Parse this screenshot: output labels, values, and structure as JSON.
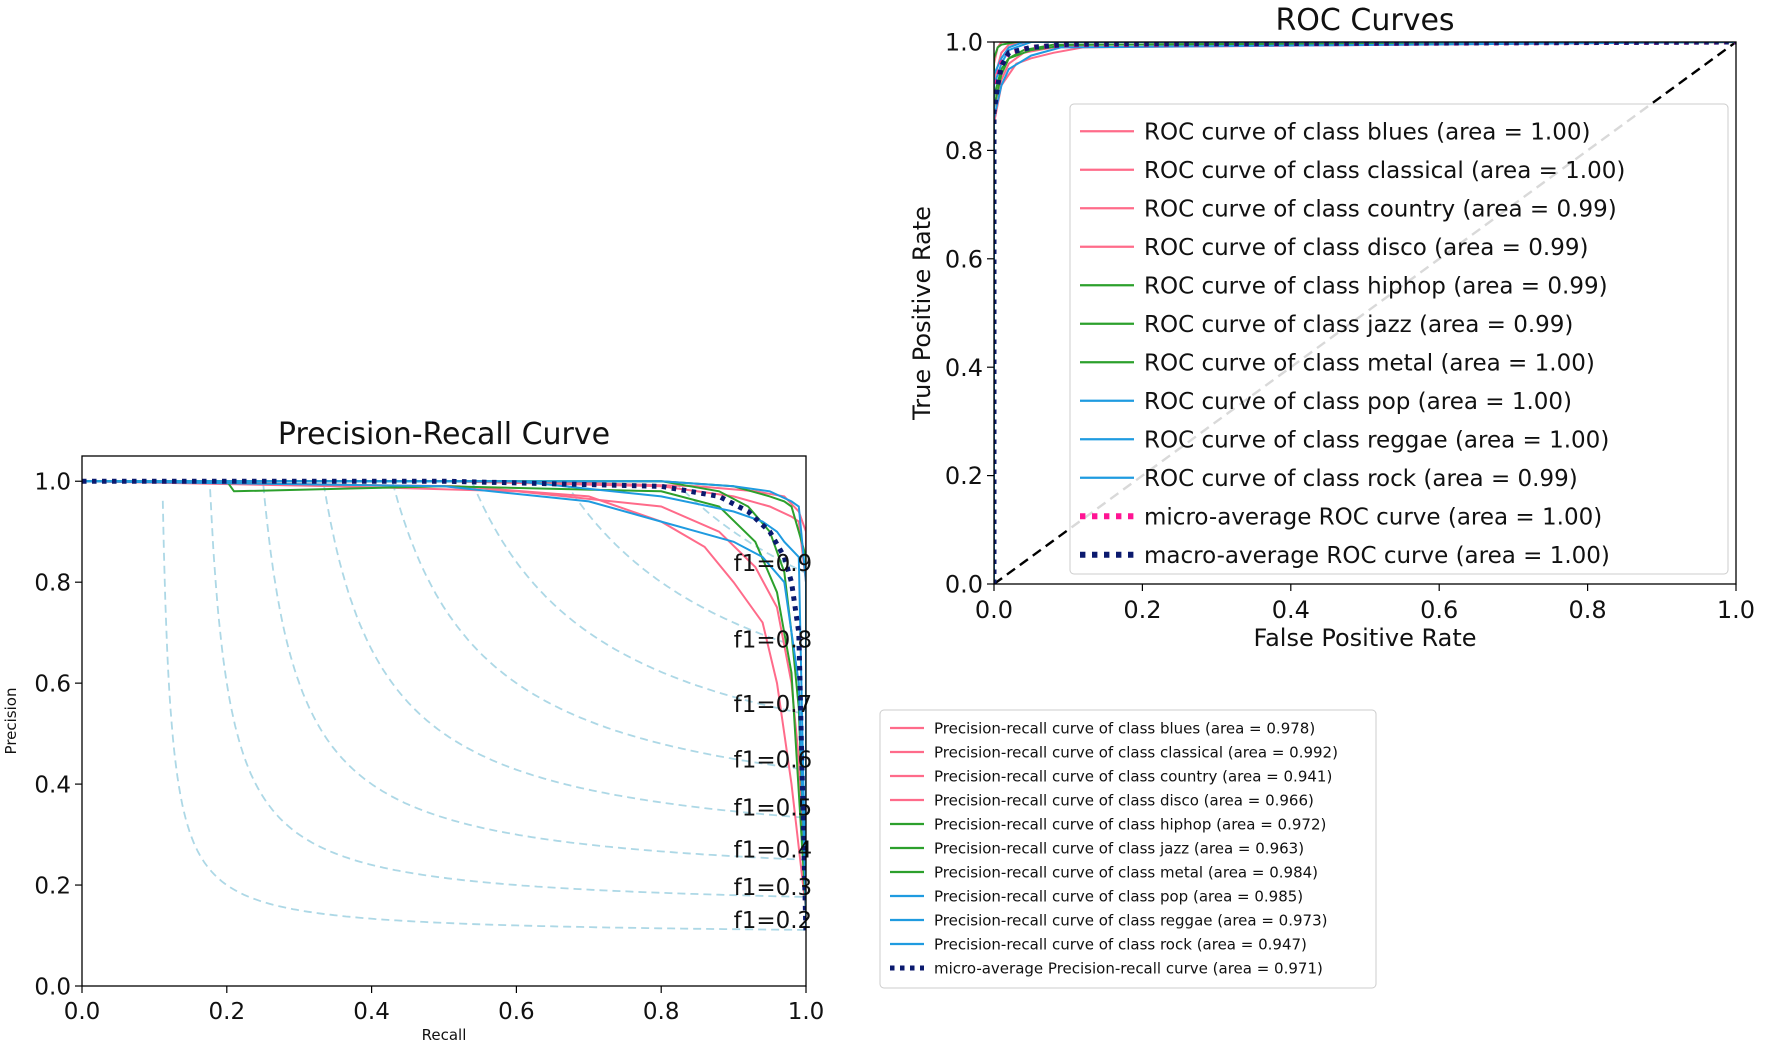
{
  "chart_data": [
    {
      "type": "line",
      "title": "ROC Curves",
      "xlabel": "False Positive Rate",
      "ylabel": "True Positive Rate",
      "xlim": [
        0.0,
        1.0
      ],
      "ylim": [
        0.0,
        1.0
      ],
      "xticks": [
        "0.0",
        "0.2",
        "0.4",
        "0.6",
        "0.8",
        "1.0"
      ],
      "yticks": [
        "0.0",
        "0.2",
        "0.4",
        "0.6",
        "0.8",
        "1.0"
      ],
      "grid": false,
      "legend_position": "center-right",
      "series": [
        {
          "name": "ROC curve of class blues (area = 1.00)",
          "color": "#ff6b8a",
          "style": "solid",
          "x": [
            0,
            0.0,
            0.01,
            0.02,
            0.05,
            0.1,
            1.0
          ],
          "y": [
            0,
            0.93,
            0.98,
            0.995,
            1.0,
            1.0,
            1.0
          ]
        },
        {
          "name": "ROC curve of class classical (area = 1.00)",
          "color": "#ff6b8a",
          "style": "solid",
          "x": [
            0,
            0.0,
            0.005,
            0.01,
            0.03,
            1.0
          ],
          "y": [
            0,
            0.96,
            0.99,
            1.0,
            1.0,
            1.0
          ]
        },
        {
          "name": "ROC curve of class country (area = 0.99)",
          "color": "#ff6b8a",
          "style": "solid",
          "x": [
            0,
            0.0,
            0.01,
            0.03,
            0.05,
            0.08,
            0.12,
            1.0
          ],
          "y": [
            0,
            0.85,
            0.92,
            0.96,
            0.97,
            0.98,
            0.99,
            1.0
          ]
        },
        {
          "name": "ROC curve of class disco (area = 0.99)",
          "color": "#ff6b8a",
          "style": "solid",
          "x": [
            0,
            0.0,
            0.01,
            0.02,
            0.04,
            0.08,
            0.13,
            1.0
          ],
          "y": [
            0,
            0.88,
            0.93,
            0.96,
            0.98,
            0.99,
            0.995,
            1.0
          ]
        },
        {
          "name": "ROC curve of class hiphop (area = 0.99)",
          "color": "#2ca02c",
          "style": "solid",
          "x": [
            0,
            0.0,
            0.01,
            0.02,
            0.04,
            0.08,
            1.0
          ],
          "y": [
            0,
            0.9,
            0.95,
            0.97,
            0.985,
            0.995,
            1.0
          ]
        },
        {
          "name": "ROC curve of class jazz (area = 0.99)",
          "color": "#2ca02c",
          "style": "solid",
          "x": [
            0,
            0.0,
            0.01,
            0.02,
            0.05,
            0.1,
            1.0
          ],
          "y": [
            0,
            0.88,
            0.94,
            0.97,
            0.985,
            0.995,
            1.0
          ]
        },
        {
          "name": "ROC curve of class metal (area = 1.00)",
          "color": "#2ca02c",
          "style": "solid",
          "x": [
            0,
            0.0,
            0.005,
            0.01,
            0.03,
            1.0
          ],
          "y": [
            0,
            0.97,
            0.99,
            0.995,
            1.0,
            1.0
          ]
        },
        {
          "name": "ROC curve of class pop (area = 1.00)",
          "color": "#1f9be0",
          "style": "solid",
          "x": [
            0,
            0.0,
            0.01,
            0.02,
            0.04,
            1.0
          ],
          "y": [
            0,
            0.94,
            0.97,
            0.99,
            1.0,
            1.0
          ]
        },
        {
          "name": "ROC curve of class reggae (area = 1.00)",
          "color": "#1f9be0",
          "style": "solid",
          "x": [
            0,
            0.0,
            0.01,
            0.02,
            0.05,
            1.0
          ],
          "y": [
            0,
            0.92,
            0.96,
            0.985,
            1.0,
            1.0
          ]
        },
        {
          "name": "ROC curve of class rock (area = 0.99)",
          "color": "#1f9be0",
          "style": "solid",
          "x": [
            0,
            0.0,
            0.01,
            0.02,
            0.05,
            0.09,
            1.0
          ],
          "y": [
            0,
            0.86,
            0.92,
            0.95,
            0.975,
            0.99,
            1.0
          ]
        },
        {
          "name": "micro-average ROC curve (area = 1.00)",
          "color": "#ff1493",
          "style": "dotted",
          "x": [
            0,
            0.0,
            0.005,
            0.01,
            0.02,
            0.05,
            0.1,
            1.0
          ],
          "y": [
            0,
            0.88,
            0.93,
            0.96,
            0.98,
            0.99,
            0.995,
            1.0
          ]
        },
        {
          "name": "macro-average ROC curve (area = 1.00)",
          "color": "#0b1a6e",
          "style": "dotted",
          "x": [
            0,
            0.0,
            0.005,
            0.01,
            0.02,
            0.05,
            0.1,
            1.0
          ],
          "y": [
            0,
            0.87,
            0.92,
            0.955,
            0.98,
            0.99,
            0.996,
            1.0
          ]
        }
      ],
      "reference_line": {
        "x": [
          0,
          1
        ],
        "y": [
          0,
          1
        ],
        "color": "#000000",
        "style": "dashed"
      }
    },
    {
      "type": "line",
      "title": "Precision-Recall Curve",
      "xlabel": "Recall",
      "ylabel": "Precision",
      "xlim": [
        0.0,
        1.0
      ],
      "ylim": [
        0.0,
        1.05
      ],
      "xticks": [
        "0.0",
        "0.2",
        "0.4",
        "0.6",
        "0.8",
        "1.0"
      ],
      "yticks": [
        "0.0",
        "0.2",
        "0.4",
        "0.6",
        "0.8",
        "1.0"
      ],
      "grid": false,
      "legend_position": "outside-right",
      "iso_f1": {
        "color": "#add8e6",
        "values": [
          0.2,
          0.3,
          0.4,
          0.5,
          0.6,
          0.7,
          0.8,
          0.9
        ],
        "labels": [
          "f1=0.2",
          "f1=0.3",
          "f1=0.4",
          "f1=0.5",
          "f1=0.6",
          "f1=0.7",
          "f1=0.8",
          "f1=0.9"
        ]
      },
      "series": [
        {
          "name": "Precision-recall curve of class blues (area = 0.978)",
          "color": "#ff6b8a",
          "style": "solid",
          "x": [
            0.0,
            0.5,
            0.8,
            0.9,
            0.95,
            0.98,
            0.99,
            1.0,
            1.0
          ],
          "y": [
            1.0,
            1.0,
            0.99,
            0.97,
            0.95,
            0.93,
            0.92,
            0.8,
            0.2
          ]
        },
        {
          "name": "Precision-recall curve of class classical (area = 0.992)",
          "color": "#ff6b8a",
          "style": "solid",
          "x": [
            0.0,
            0.6,
            0.85,
            0.93,
            0.97,
            0.99,
            1.0,
            1.0
          ],
          "y": [
            1.0,
            1.0,
            0.99,
            0.98,
            0.97,
            0.94,
            0.9,
            0.2
          ]
        },
        {
          "name": "Precision-recall curve of class country (area = 0.941)",
          "color": "#ff6b8a",
          "style": "solid",
          "x": [
            0.0,
            0.52,
            0.7,
            0.8,
            0.86,
            0.9,
            0.94,
            0.96,
            0.97,
            0.98,
            1.0
          ],
          "y": [
            1.0,
            0.99,
            0.97,
            0.92,
            0.87,
            0.8,
            0.72,
            0.6,
            0.5,
            0.4,
            0.15
          ]
        },
        {
          "name": "Precision-recall curve of class disco (area = 0.966)",
          "color": "#ff6b8a",
          "style": "solid",
          "x": [
            0.0,
            0.35,
            0.6,
            0.8,
            0.88,
            0.93,
            0.96,
            0.98,
            0.99,
            1.0
          ],
          "y": [
            1.0,
            0.99,
            0.98,
            0.95,
            0.9,
            0.83,
            0.75,
            0.6,
            0.45,
            0.15
          ]
        },
        {
          "name": "Precision-recall curve of class hiphop (area = 0.972)",
          "color": "#2ca02c",
          "style": "solid",
          "x": [
            0.0,
            0.8,
            0.88,
            0.92,
            0.95,
            0.97,
            0.98,
            0.99,
            1.0
          ],
          "y": [
            1.0,
            1.0,
            0.98,
            0.95,
            0.9,
            0.82,
            0.7,
            0.55,
            0.15
          ]
        },
        {
          "name": "Precision-recall curve of class jazz (area = 0.963)",
          "color": "#2ca02c",
          "style": "solid",
          "x": [
            0.0,
            0.2,
            0.21,
            0.5,
            0.8,
            0.88,
            0.93,
            0.96,
            0.98,
            1.0
          ],
          "y": [
            1.0,
            1.0,
            0.98,
            0.99,
            0.98,
            0.95,
            0.88,
            0.78,
            0.62,
            0.15
          ]
        },
        {
          "name": "Precision-recall curve of class metal (area = 0.984)",
          "color": "#2ca02c",
          "style": "solid",
          "x": [
            0.0,
            0.8,
            0.9,
            0.95,
            0.97,
            0.98,
            0.99,
            1.0,
            1.0
          ],
          "y": [
            1.0,
            1.0,
            0.99,
            0.97,
            0.96,
            0.95,
            0.9,
            0.85,
            0.13
          ]
        },
        {
          "name": "Precision-recall curve of class pop (area = 0.985)",
          "color": "#1f9be0",
          "style": "solid",
          "x": [
            0.0,
            0.8,
            0.9,
            0.95,
            0.98,
            0.99,
            1.0,
            1.0
          ],
          "y": [
            1.0,
            1.0,
            0.99,
            0.98,
            0.96,
            0.95,
            0.8,
            0.12
          ]
        },
        {
          "name": "Precision-recall curve of class reggae (area = 0.973)",
          "color": "#1f9be0",
          "style": "solid",
          "x": [
            0.0,
            0.6,
            0.8,
            0.9,
            0.94,
            0.96,
            0.97,
            0.99,
            1.0
          ],
          "y": [
            1.0,
            1.0,
            0.97,
            0.94,
            0.92,
            0.9,
            0.88,
            0.85,
            0.15
          ]
        },
        {
          "name": "Precision-recall curve of class rock (area = 0.947)",
          "color": "#1f9be0",
          "style": "solid",
          "x": [
            0.0,
            0.5,
            0.7,
            0.8,
            0.85,
            0.9,
            0.94,
            0.97,
            0.99,
            1.0
          ],
          "y": [
            1.0,
            0.99,
            0.96,
            0.92,
            0.9,
            0.88,
            0.85,
            0.8,
            0.6,
            0.15
          ]
        },
        {
          "name": "micro-average Precision-recall curve (area = 0.971)",
          "color": "#0b1a6e",
          "style": "dotted",
          "x": [
            0.0,
            0.5,
            0.8,
            0.88,
            0.92,
            0.95,
            0.97,
            0.98,
            0.99,
            1.0
          ],
          "y": [
            1.0,
            1.0,
            0.99,
            0.97,
            0.94,
            0.9,
            0.85,
            0.8,
            0.7,
            0.1
          ]
        }
      ]
    }
  ]
}
